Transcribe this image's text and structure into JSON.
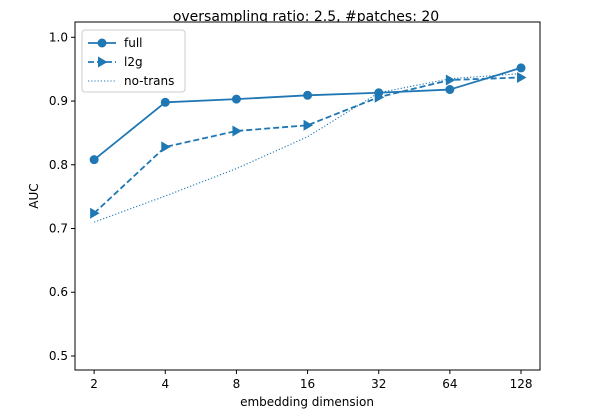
{
  "chart_data": {
    "type": "line",
    "title": "oversampling ratio: 2.5, #patches: 20",
    "xlabel": "embedding dimension",
    "ylabel": "AUC",
    "x_scale": "log2",
    "categories": [
      "2",
      "4",
      "8",
      "16",
      "32",
      "64",
      "128"
    ],
    "x": [
      2,
      4,
      8,
      16,
      32,
      64,
      128
    ],
    "xlim": [
      1.66,
      154
    ],
    "ylim": [
      0.478,
      1.024
    ],
    "yticks": [
      "0.5",
      "0.6",
      "0.7",
      "0.8",
      "0.9",
      "1.0"
    ],
    "grid": false,
    "legend_position": "top-left",
    "color": "#1f77b4",
    "series": [
      {
        "name": "full",
        "style": "solid",
        "marker": "circle",
        "values": [
          0.808,
          0.898,
          0.903,
          0.909,
          0.913,
          0.918,
          0.952
        ]
      },
      {
        "name": "l2g",
        "style": "dashed",
        "marker": "triangle-right",
        "values": [
          0.724,
          0.828,
          0.853,
          0.862,
          0.906,
          0.933,
          0.937
        ]
      },
      {
        "name": "no-trans",
        "style": "dotted",
        "marker": "none",
        "values": [
          0.71,
          0.751,
          0.794,
          0.844,
          0.913,
          0.935,
          0.943
        ]
      }
    ]
  }
}
